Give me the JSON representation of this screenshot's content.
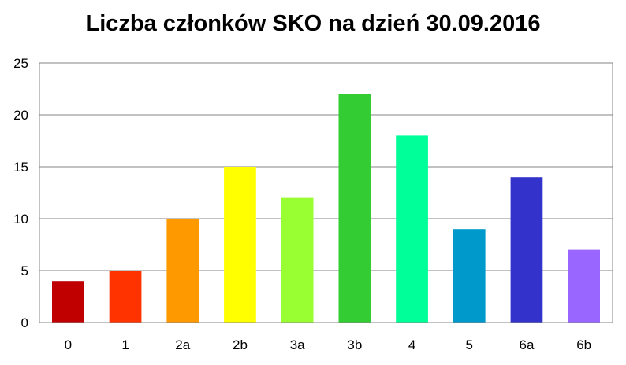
{
  "chart_data": {
    "type": "bar",
    "title": "Liczba członków SKO na dzień 30.09.2016",
    "xlabel": "",
    "ylabel": "",
    "categories": [
      "0",
      "1",
      "2a",
      "2b",
      "3a",
      "3b",
      "4",
      "5",
      "6a",
      "6b"
    ],
    "values": [
      4,
      5,
      10,
      15,
      12,
      22,
      18,
      9,
      14,
      7
    ],
    "colors": [
      "#C00000",
      "#FF3300",
      "#FF9900",
      "#FFFF00",
      "#99FF33",
      "#33CC33",
      "#00FF99",
      "#0099CC",
      "#3333CC",
      "#9966FF"
    ],
    "ylim": [
      0,
      25
    ],
    "yticks": [
      "0",
      "5",
      "10",
      "15",
      "20",
      "25"
    ],
    "grid": true,
    "legend": "none"
  }
}
